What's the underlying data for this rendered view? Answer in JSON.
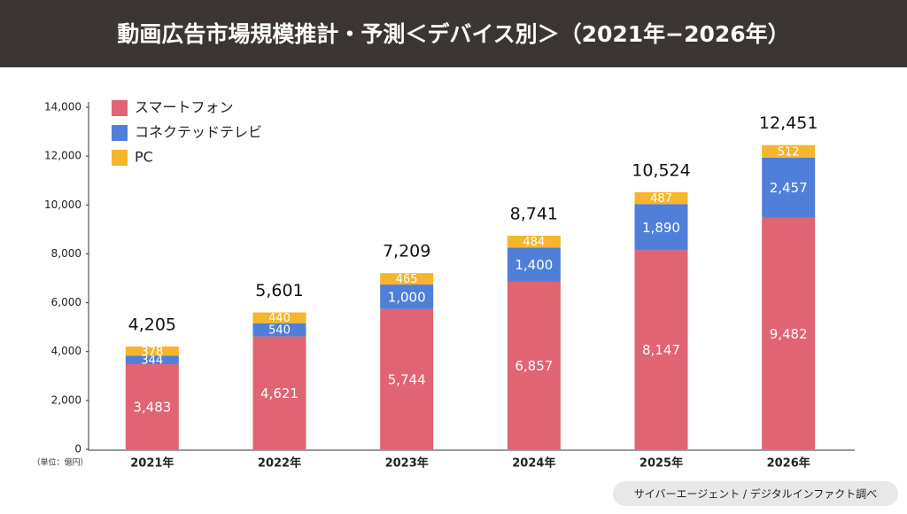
{
  "chart_data": {
    "type": "stacked_bar",
    "title": "動画広告市場規模推計・予測＜デバイス別＞（2021年−2026年）",
    "unit_note": "（単位：億円）",
    "source": "サイバーエージェント / デジタルインファクト調べ",
    "categories": [
      "2021年",
      "2022年",
      "2023年",
      "2024年",
      "2025年",
      "2026年"
    ],
    "series": [
      {
        "name": "スマートフォン",
        "color": "#e06471",
        "values": [
          3483,
          4621,
          5744,
          6857,
          8147,
          9482
        ],
        "value_labels": [
          "3,483",
          "4,621",
          "5,744",
          "6,857",
          "8,147",
          "9,482"
        ]
      },
      {
        "name": "コネクテッドテレビ",
        "color": "#4f7fd8",
        "values": [
          344,
          540,
          1000,
          1400,
          1890,
          2457
        ],
        "value_labels": [
          "344",
          "540",
          "1,000",
          "1,400",
          "1,890",
          "2,457"
        ]
      },
      {
        "name": "PC",
        "color": "#f5b52c",
        "values": [
          378,
          440,
          465,
          484,
          487,
          512
        ]
      }
    ],
    "totals": {
      "values": [
        4205,
        5601,
        7209,
        8741,
        10524,
        12451
      ],
      "value_labels": [
        "4,205",
        "5,601",
        "7,209",
        "8,741",
        "10,524",
        "12,451"
      ]
    },
    "ylim": [
      0,
      14000
    ],
    "yticks": [
      0,
      {
        "value": 2000,
        "label": "2,000"
      },
      {
        "value": 4000,
        "label": "4,000"
      },
      {
        "value": 6000,
        "label": "6,000"
      },
      {
        "value": 8000,
        "label": "8,000"
      },
      {
        "value": 10000,
        "label": "10,000"
      },
      {
        "value": 12000,
        "label": "12,000"
      },
      {
        "value": 14000,
        "label": "14,000"
      }
    ],
    "grid": false,
    "legend": "top-left"
  }
}
